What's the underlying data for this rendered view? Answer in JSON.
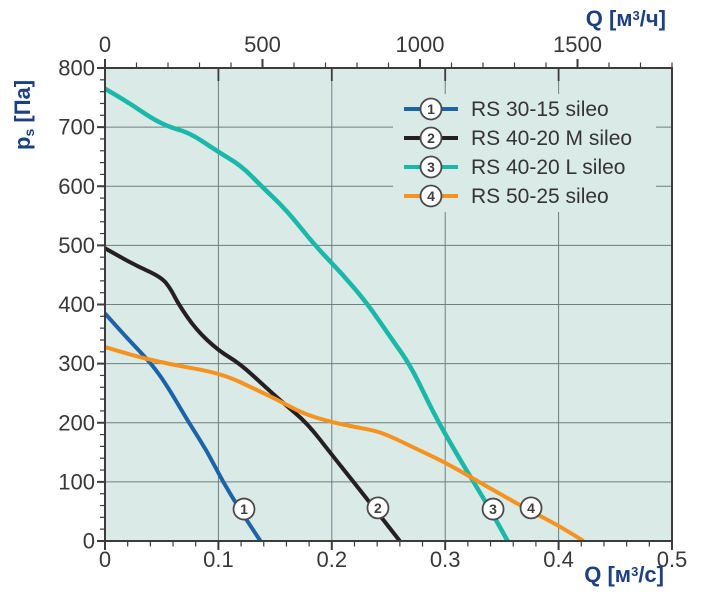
{
  "chart_data": {
    "type": "line",
    "title": "",
    "background_color": "#daeae7",
    "grid_color": "#6f7e7e",
    "axis_color": "#3c3c3c",
    "tick_label_color": "#383838",
    "axis_title_color": "#1d4080",
    "x_bottom": {
      "title_parts": {
        "main": "Q [м",
        "sup": "3",
        "unit": "/с]"
      },
      "range": [
        0,
        0.5
      ],
      "tick_labels": [
        "0",
        "0.1",
        "0.2",
        "0.3",
        "0.4",
        "0.5"
      ],
      "minor_step": 0.02,
      "grid_at": [
        0.1,
        0.2,
        0.3,
        0.4
      ]
    },
    "x_top": {
      "title_parts": {
        "main": "Q [м",
        "sup": "3",
        "unit": "/ч]"
      },
      "range": [
        0,
        1800
      ],
      "tick_labels": [
        "0",
        "500",
        "1000",
        "1500"
      ],
      "minor_step": 100,
      "units_per_bottom_unit": 3600
    },
    "y": {
      "title_parts": {
        "main": "p",
        "sub": "s",
        "unit": " [Па]"
      },
      "range": [
        0,
        800
      ],
      "tick_labels": [
        "0",
        "100",
        "200",
        "300",
        "400",
        "500",
        "600",
        "700",
        "800"
      ],
      "minor_step": 20,
      "grid_at": [
        100,
        200,
        300,
        400,
        500,
        600,
        700
      ]
    },
    "legend_position": "top-right",
    "series": [
      {
        "id": "1",
        "label": "RS 30-15 sileo",
        "color": "#1c63a8",
        "marker": {
          "q": 0.1226,
          "p": 54
        },
        "points": [
          [
            0,
            385
          ],
          [
            0.02,
            342
          ],
          [
            0.041,
            300
          ],
          [
            0.055,
            262
          ],
          [
            0.074,
            200
          ],
          [
            0.09,
            152
          ],
          [
            0.104,
            100
          ],
          [
            0.12,
            50
          ],
          [
            0.137,
            0
          ]
        ]
      },
      {
        "id": "2",
        "label": "RS 40-20 M sileo",
        "color": "#242021",
        "marker": {
          "q": 0.2407,
          "p": 56
        },
        "points": [
          [
            0,
            495
          ],
          [
            0.025,
            468
          ],
          [
            0.05,
            446
          ],
          [
            0.058,
            426
          ],
          [
            0.065,
            400
          ],
          [
            0.08,
            358
          ],
          [
            0.1,
            322
          ],
          [
            0.119,
            300
          ],
          [
            0.14,
            263
          ],
          [
            0.158,
            232
          ],
          [
            0.178,
            200
          ],
          [
            0.2,
            146
          ],
          [
            0.22,
            98
          ],
          [
            0.24,
            49
          ],
          [
            0.26,
            0
          ]
        ]
      },
      {
        "id": "3",
        "label": "RS 40-20 L sileo",
        "color": "#1ab8a8",
        "marker": {
          "q": 0.3422,
          "p": 54
        },
        "points": [
          [
            0,
            765
          ],
          [
            0.022,
            740
          ],
          [
            0.042,
            714
          ],
          [
            0.057,
            700
          ],
          [
            0.075,
            690
          ],
          [
            0.1,
            658
          ],
          [
            0.12,
            635
          ],
          [
            0.138,
            600
          ],
          [
            0.16,
            560
          ],
          [
            0.185,
            500
          ],
          [
            0.21,
            450
          ],
          [
            0.232,
            400
          ],
          [
            0.252,
            344
          ],
          [
            0.27,
            295
          ],
          [
            0.29,
            215
          ],
          [
            0.308,
            154
          ],
          [
            0.325,
            100
          ],
          [
            0.34,
            52
          ],
          [
            0.355,
            0
          ]
        ]
      },
      {
        "id": "4",
        "label": "RS 50-25 sileo",
        "color": "#f6921e",
        "marker": {
          "q": 0.3757,
          "p": 56
        },
        "points": [
          [
            0,
            328
          ],
          [
            0.03,
            311
          ],
          [
            0.06,
            298
          ],
          [
            0.09,
            288
          ],
          [
            0.11,
            277
          ],
          [
            0.13,
            259
          ],
          [
            0.152,
            239
          ],
          [
            0.175,
            215
          ],
          [
            0.2,
            201
          ],
          [
            0.22,
            193
          ],
          [
            0.243,
            185
          ],
          [
            0.27,
            160
          ],
          [
            0.3,
            133
          ],
          [
            0.326,
            104
          ],
          [
            0.35,
            78
          ],
          [
            0.376,
            50
          ],
          [
            0.4,
            26
          ],
          [
            0.422,
            0
          ]
        ]
      }
    ]
  }
}
